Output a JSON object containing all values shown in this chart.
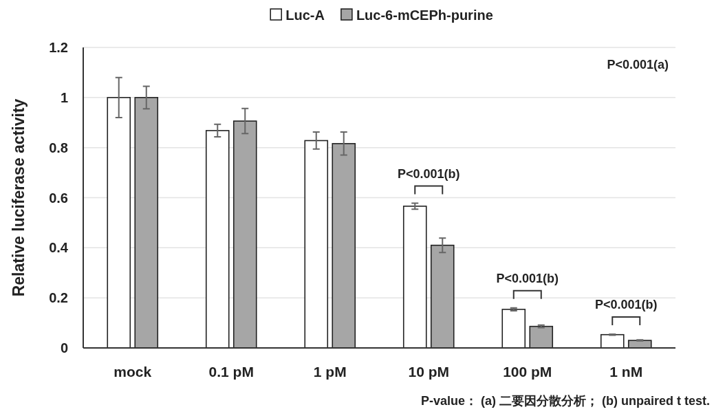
{
  "chart_data": {
    "type": "bar",
    "ylabel": "Relative luciferase activity",
    "categories": [
      "mock",
      "0.1 pM",
      "1 pM",
      "10 pM",
      "100 pM",
      "1 nM"
    ],
    "series": [
      {
        "name": "Luc-A",
        "color": "#ffffff",
        "values": [
          1.0,
          0.868,
          0.828,
          0.566,
          0.154,
          0.053
        ],
        "errors": [
          0.08,
          0.025,
          0.034,
          0.012,
          0.006,
          0.002
        ]
      },
      {
        "name": "Luc-6-mCEPh-purine",
        "color": "#a6a6a6",
        "values": [
          1.0,
          0.906,
          0.816,
          0.41,
          0.086,
          0.03
        ],
        "errors": [
          0.045,
          0.05,
          0.046,
          0.029,
          0.005,
          0.002
        ]
      }
    ],
    "ylim": [
      0,
      1.2
    ],
    "yticks": [
      0,
      0.2,
      0.4,
      0.6,
      0.8,
      1,
      1.2
    ],
    "grid": "y",
    "legend": "top",
    "annotations": [
      "P<0.001(a)",
      "P<0.001(b)",
      "P<0.001(b)",
      "P<0.001(b)",
      "P-value： (a) 二要因分散分析； (b) unpaired t test."
    ]
  }
}
